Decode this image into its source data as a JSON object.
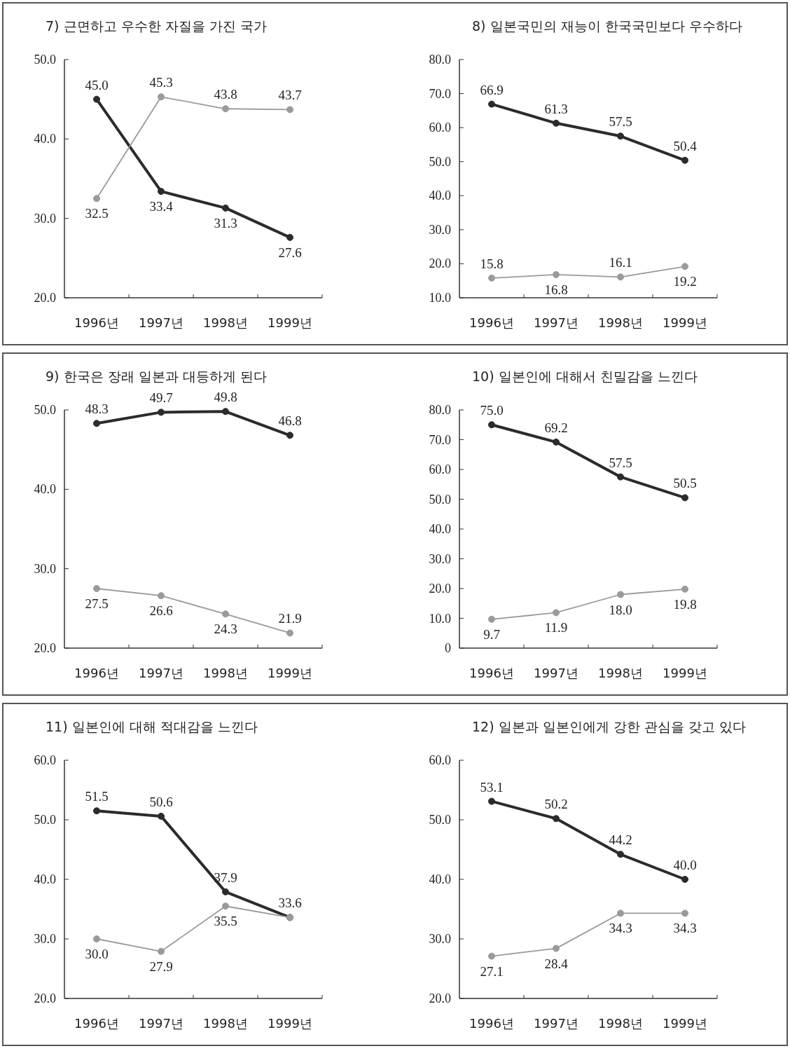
{
  "chart_data": [
    {
      "type": "line",
      "title": "7) 근면하고 우수한 자질을 가진 국가",
      "categories": [
        "1996년",
        "1997년",
        "1998년",
        "1999년"
      ],
      "ylim": [
        20,
        50
      ],
      "yticks": [
        {
          "value": 20,
          "label": "20.0"
        },
        {
          "value": 30,
          "label": "30.0"
        },
        {
          "value": 40,
          "label": "40.0"
        },
        {
          "value": 50,
          "label": "50.0"
        }
      ],
      "marker": "circle",
      "series": [
        {
          "color": "#2b2b2b",
          "values": [
            45.0,
            33.4,
            31.3,
            27.6
          ],
          "value_labels": [
            "45.0",
            "33.4",
            "31.3",
            "27.6"
          ]
        },
        {
          "color": "#9a9a9a",
          "values": [
            32.5,
            45.3,
            43.8,
            43.7
          ],
          "value_labels": [
            "32.5",
            "45.3",
            "43.8",
            "43.7"
          ]
        }
      ]
    },
    {
      "type": "line",
      "title": "8) 일본국민의 재능이 한국국민보다 우수하다",
      "categories": [
        "1996년",
        "1997년",
        "1998년",
        "1999년"
      ],
      "ylim": [
        10,
        80
      ],
      "yticks": [
        {
          "value": 10,
          "label": "10.0"
        },
        {
          "value": 20,
          "label": "20.0"
        },
        {
          "value": 30,
          "label": "30.0"
        },
        {
          "value": 40,
          "label": "40.0"
        },
        {
          "value": 50,
          "label": "50.0"
        },
        {
          "value": 60,
          "label": "60.0"
        },
        {
          "value": 70,
          "label": "70.0"
        },
        {
          "value": 80,
          "label": "80.0"
        }
      ],
      "marker": "circle",
      "series": [
        {
          "color": "#2b2b2b",
          "values": [
            66.9,
            61.3,
            57.5,
            50.4
          ],
          "value_labels": [
            "66.9",
            "61.3",
            "57.5",
            "50.4"
          ]
        },
        {
          "color": "#9a9a9a",
          "values": [
            15.8,
            16.8,
            16.1,
            19.2
          ],
          "value_labels": [
            "15.8",
            "16.8",
            "16.1",
            "19.2"
          ]
        }
      ]
    },
    {
      "type": "line",
      "title": "9) 한국은 장래 일본과 대등하게 된다",
      "categories": [
        "1996년",
        "1997년",
        "1998년",
        "1999년"
      ],
      "ylim": [
        20,
        50
      ],
      "yticks": [
        {
          "value": 20,
          "label": "20.0"
        },
        {
          "value": 30,
          "label": "30.0"
        },
        {
          "value": 40,
          "label": "40.0"
        },
        {
          "value": 50,
          "label": "50.0"
        }
      ],
      "marker": "circle",
      "series": [
        {
          "color": "#2b2b2b",
          "values": [
            48.3,
            49.7,
            49.8,
            46.8
          ],
          "value_labels": [
            "48.3",
            "49.7",
            "49.8",
            "46.8"
          ]
        },
        {
          "color": "#9a9a9a",
          "values": [
            27.5,
            26.6,
            24.3,
            21.9
          ],
          "value_labels": [
            "27.5",
            "26.6",
            "24.3",
            "21.9"
          ]
        }
      ]
    },
    {
      "type": "line",
      "title": "10) 일본인에 대해서 친밀감을 느낀다",
      "categories": [
        "1996년",
        "1997년",
        "1998년",
        "1999년"
      ],
      "ylim": [
        0,
        80
      ],
      "yticks": [
        0,
        {
          "value": 10,
          "label": "10.0"
        },
        {
          "value": 20,
          "label": "20.0"
        },
        {
          "value": 30,
          "label": "30.0"
        },
        {
          "value": 40,
          "label": "40.0"
        },
        {
          "value": 50,
          "label": "50.0"
        },
        {
          "value": 60,
          "label": "60.0"
        },
        {
          "value": 70,
          "label": "70.0"
        },
        {
          "value": 80,
          "label": "80.0"
        }
      ],
      "marker": "circle",
      "series": [
        {
          "color": "#2b2b2b",
          "values": [
            75.0,
            69.2,
            57.5,
            50.5
          ],
          "value_labels": [
            "75.0",
            "69.2",
            "57.5",
            "50.5"
          ]
        },
        {
          "color": "#9a9a9a",
          "values": [
            9.7,
            11.9,
            18.0,
            19.8
          ],
          "value_labels": [
            "9.7",
            "11.9",
            "18.0",
            "19.8"
          ]
        }
      ]
    },
    {
      "type": "line",
      "title": "11) 일본인에 대해 적대감을 느낀다",
      "categories": [
        "1996년",
        "1997년",
        "1998년",
        "1999년"
      ],
      "ylim": [
        20,
        60
      ],
      "yticks": [
        {
          "value": 20,
          "label": "20.0"
        },
        {
          "value": 30,
          "label": "30.0"
        },
        {
          "value": 40,
          "label": "40.0"
        },
        {
          "value": 50,
          "label": "50.0"
        },
        {
          "value": 60,
          "label": "60.0"
        }
      ],
      "marker": "circle",
      "series": [
        {
          "color": "#2b2b2b",
          "values": [
            51.5,
            50.6,
            37.9,
            33.6
          ],
          "value_labels": [
            "51.5",
            "50.6",
            "37.9",
            "33.6"
          ]
        },
        {
          "color": "#9a9a9a",
          "values": [
            30.0,
            27.9,
            35.5,
            33.6
          ],
          "value_labels": [
            "30.0",
            "27.9",
            "35.5",
            null
          ]
        }
      ]
    },
    {
      "type": "line",
      "title": "12) 일본과 일본인에게 강한 관심을 갖고 있다",
      "categories": [
        "1996년",
        "1997년",
        "1998년",
        "1999년"
      ],
      "ylim": [
        20,
        60
      ],
      "yticks": [
        {
          "value": 20,
          "label": "20.0"
        },
        {
          "value": 30,
          "label": "30.0"
        },
        {
          "value": 40,
          "label": "40.0"
        },
        {
          "value": 50,
          "label": "50.0"
        },
        {
          "value": 60,
          "label": "60.0"
        }
      ],
      "marker": "circle",
      "series": [
        {
          "color": "#2b2b2b",
          "values": [
            53.1,
            50.2,
            44.2,
            40.0
          ],
          "value_labels": [
            "53.1",
            "50.2",
            "44.2",
            "40.0"
          ]
        },
        {
          "color": "#9a9a9a",
          "values": [
            27.1,
            28.4,
            34.3,
            34.3
          ],
          "value_labels": [
            "27.1",
            "28.4",
            "34.3",
            "34.3"
          ]
        }
      ]
    }
  ]
}
